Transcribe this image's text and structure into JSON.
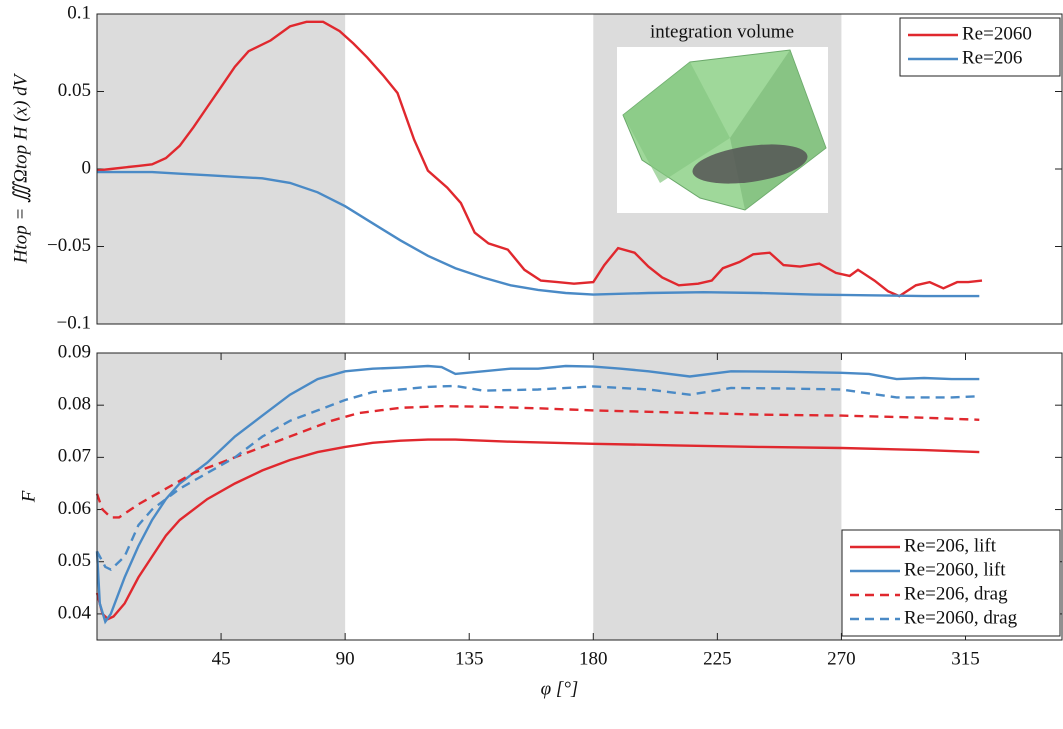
{
  "chart_data": [
    {
      "type": "line",
      "ylabel": "Htop = ∭Ωtop H (x) dV",
      "annotation": "integration volume",
      "xlim": [
        0,
        350
      ],
      "ylim": [
        -0.1,
        0.1
      ],
      "yticks": [
        {
          "value": -0.1,
          "label": "−0.1"
        },
        {
          "value": -0.05,
          "label": "−0.05"
        },
        0,
        0.05,
        0.1
      ],
      "shaded": [
        [
          0,
          90
        ],
        [
          180,
          270
        ]
      ],
      "legend": "upper right",
      "series": [
        {
          "name": "Re=2060",
          "color": "#e0282e",
          "dash": false,
          "x": [
            0,
            5,
            10,
            15,
            20,
            25,
            30,
            35,
            40,
            45,
            50,
            55,
            63,
            70,
            76,
            82,
            88,
            93,
            98,
            104,
            109,
            115,
            120,
            127,
            132,
            137,
            142,
            149,
            155,
            161,
            167,
            173,
            180,
            184,
            189,
            195,
            200,
            205,
            211,
            218,
            223,
            227,
            233,
            238,
            244,
            249,
            255,
            262,
            268,
            273,
            276,
            282,
            287,
            291,
            297,
            302,
            307,
            312,
            316,
            321
          ],
          "values": [
            -0.001,
            0,
            0.001,
            0.002,
            0.003,
            0.007,
            0.015,
            0.027,
            0.04,
            0.053,
            0.066,
            0.076,
            0.083,
            0.092,
            0.095,
            0.095,
            0.089,
            0.081,
            0.072,
            0.06,
            0.049,
            0.019,
            -0.001,
            -0.012,
            -0.022,
            -0.041,
            -0.048,
            -0.052,
            -0.065,
            -0.072,
            -0.073,
            -0.074,
            -0.073,
            -0.062,
            -0.051,
            -0.054,
            -0.063,
            -0.07,
            -0.075,
            -0.074,
            -0.072,
            -0.064,
            -0.06,
            -0.055,
            -0.054,
            -0.062,
            -0.063,
            -0.061,
            -0.067,
            -0.069,
            -0.065,
            -0.072,
            -0.079,
            -0.082,
            -0.075,
            -0.073,
            -0.077,
            -0.073,
            -0.073,
            -0.072
          ]
        },
        {
          "name": "Re=206",
          "color": "#4a8ac6",
          "dash": false,
          "x": [
            0,
            10,
            20,
            30,
            40,
            50,
            60,
            70,
            80,
            90,
            100,
            110,
            120,
            130,
            140,
            150,
            160,
            170,
            180,
            200,
            220,
            240,
            260,
            280,
            300,
            320
          ],
          "values": [
            -0.002,
            -0.002,
            -0.002,
            -0.003,
            -0.004,
            -0.005,
            -0.006,
            -0.009,
            -0.015,
            -0.024,
            -0.035,
            -0.046,
            -0.056,
            -0.064,
            -0.07,
            -0.075,
            -0.078,
            -0.08,
            -0.081,
            -0.08,
            -0.0795,
            -0.08,
            -0.081,
            -0.0815,
            -0.082,
            -0.082
          ]
        }
      ]
    },
    {
      "type": "line",
      "ylabel": "F",
      "xlabel": "φ [°]",
      "xlim": [
        0,
        350
      ],
      "ylim": [
        0.035,
        0.09
      ],
      "xticks": [
        45,
        90,
        135,
        180,
        225,
        270,
        315
      ],
      "yticks": [
        0.04,
        0.05,
        0.06,
        0.07,
        0.08,
        0.09
      ],
      "shaded": [
        [
          0,
          90
        ],
        [
          180,
          270
        ]
      ],
      "legend": "lower right",
      "series": [
        {
          "name": "Re=206, lift",
          "color": "#e0282e",
          "dash": false,
          "x": [
            0,
            2,
            4,
            6,
            10,
            15,
            20,
            25,
            30,
            40,
            50,
            60,
            70,
            80,
            90,
            100,
            110,
            120,
            130,
            150,
            180,
            210,
            240,
            270,
            300,
            320
          ],
          "values": [
            0.044,
            0.04,
            0.039,
            0.0395,
            0.042,
            0.047,
            0.051,
            0.055,
            0.058,
            0.062,
            0.065,
            0.0675,
            0.0695,
            0.071,
            0.072,
            0.0728,
            0.0732,
            0.0734,
            0.0734,
            0.073,
            0.0726,
            0.0723,
            0.072,
            0.0718,
            0.0714,
            0.071
          ]
        },
        {
          "name": "Re=2060, lift",
          "color": "#4a8ac6",
          "dash": false,
          "x": [
            0,
            1,
            3,
            5,
            10,
            15,
            20,
            25,
            30,
            40,
            50,
            60,
            70,
            80,
            90,
            100,
            110,
            120,
            125,
            130,
            140,
            150,
            160,
            170,
            180,
            190,
            200,
            215,
            230,
            250,
            270,
            280,
            290,
            300,
            310,
            320
          ],
          "values": [
            0.052,
            0.042,
            0.0385,
            0.04,
            0.047,
            0.053,
            0.058,
            0.062,
            0.065,
            0.069,
            0.074,
            0.078,
            0.082,
            0.085,
            0.0865,
            0.087,
            0.0872,
            0.0875,
            0.0873,
            0.086,
            0.0865,
            0.087,
            0.087,
            0.0875,
            0.0874,
            0.087,
            0.0865,
            0.0855,
            0.0865,
            0.0864,
            0.0862,
            0.086,
            0.085,
            0.0852,
            0.085,
            0.085
          ]
        },
        {
          "name": "Re=206, drag",
          "color": "#e0282e",
          "dash": true,
          "x": [
            0,
            2,
            5,
            8,
            15,
            25,
            35,
            45,
            55,
            65,
            75,
            85,
            95,
            110,
            125,
            140,
            160,
            180,
            210,
            240,
            270,
            300,
            320
          ],
          "values": [
            0.063,
            0.06,
            0.0585,
            0.0585,
            0.061,
            0.064,
            0.067,
            0.069,
            0.071,
            0.073,
            0.075,
            0.077,
            0.0785,
            0.0795,
            0.0798,
            0.0797,
            0.0794,
            0.079,
            0.0786,
            0.0782,
            0.078,
            0.0776,
            0.0772
          ]
        },
        {
          "name": "Re=2060, drag",
          "color": "#4a8ac6",
          "dash": true,
          "x": [
            0,
            3,
            5,
            10,
            15,
            20,
            30,
            40,
            50,
            60,
            70,
            80,
            90,
            100,
            110,
            120,
            130,
            140,
            160,
            180,
            200,
            215,
            230,
            250,
            270,
            290,
            310,
            320
          ],
          "values": [
            0.052,
            0.049,
            0.0485,
            0.051,
            0.057,
            0.06,
            0.064,
            0.067,
            0.07,
            0.074,
            0.077,
            0.079,
            0.081,
            0.0825,
            0.083,
            0.0835,
            0.0837,
            0.0828,
            0.083,
            0.0836,
            0.083,
            0.082,
            0.0833,
            0.0832,
            0.083,
            0.0815,
            0.0815,
            0.0817
          ]
        }
      ]
    }
  ]
}
